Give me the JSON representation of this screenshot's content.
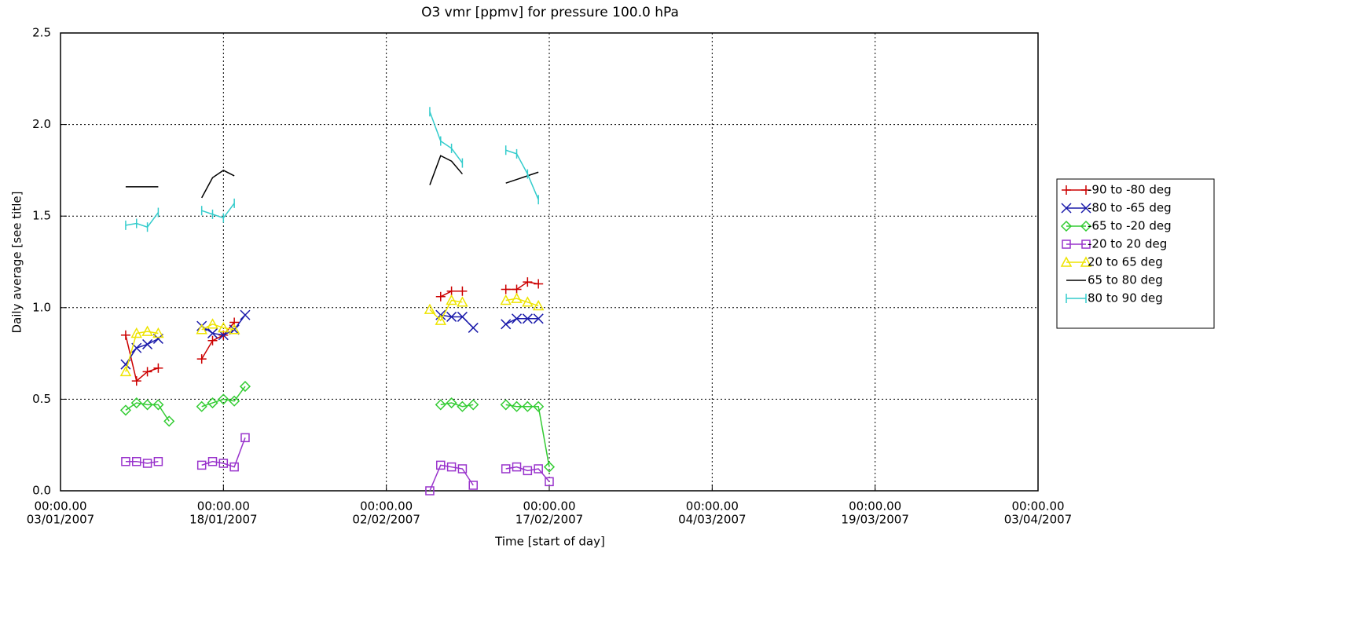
{
  "chart_data": {
    "type": "line",
    "title": "O3 vmr [ppmv] for pressure 100.0 hPa",
    "x_label": "Time [start of day]",
    "y_label": "Daily average [see title]",
    "x": [
      "2007-01-09",
      "2007-01-10",
      "2007-01-11",
      "2007-01-12",
      "2007-01-13",
      "2007-01-14",
      "2007-01-16",
      "2007-01-17",
      "2007-01-18",
      "2007-01-19",
      "2007-01-20",
      "2007-01-21",
      "2007-02-06",
      "2007-02-07",
      "2007-02-08",
      "2007-02-09",
      "2007-02-10",
      "2007-02-11",
      "2007-02-13",
      "2007-02-14",
      "2007-02-15",
      "2007-02-16",
      "2007-02-17"
    ],
    "series": [
      {
        "name": "-90 to -80 deg",
        "color": "#cc0000",
        "marker": "plus",
        "values": [
          0.85,
          0.6,
          0.65,
          0.67,
          null,
          null,
          0.72,
          0.82,
          0.85,
          0.92,
          null,
          null,
          null,
          1.06,
          1.09,
          1.09,
          null,
          null,
          1.1,
          1.1,
          1.14,
          1.13,
          null
        ]
      },
      {
        "name": "-80 to -65 deg",
        "color": "#1a1aaa",
        "marker": "cross",
        "values": [
          0.69,
          0.78,
          0.8,
          0.83,
          null,
          null,
          0.9,
          0.86,
          0.85,
          0.88,
          0.96,
          null,
          null,
          0.96,
          0.95,
          0.95,
          0.89,
          null,
          0.91,
          0.94,
          0.94,
          0.94,
          null
        ]
      },
      {
        "name": "-65 to -20 deg",
        "color": "#33cc33",
        "marker": "diamond",
        "values": [
          0.44,
          0.48,
          0.47,
          0.47,
          0.38,
          null,
          0.46,
          0.48,
          0.5,
          0.49,
          0.57,
          null,
          null,
          0.47,
          0.48,
          0.46,
          0.47,
          null,
          0.47,
          0.46,
          0.46,
          0.46,
          0.13
        ]
      },
      {
        "name": "-20 to 20 deg",
        "color": "#9933cc",
        "marker": "square",
        "values": [
          0.16,
          0.16,
          0.15,
          0.16,
          null,
          null,
          0.14,
          0.16,
          0.15,
          0.13,
          0.29,
          null,
          0.0,
          0.14,
          0.13,
          0.12,
          0.03,
          null,
          0.12,
          0.13,
          0.11,
          0.12,
          0.05
        ]
      },
      {
        "name": "20 to 65 deg",
        "color": "#eee400",
        "marker": "triangle",
        "values": [
          0.65,
          0.86,
          0.87,
          0.86,
          null,
          null,
          0.88,
          0.91,
          0.89,
          0.88,
          null,
          null,
          0.99,
          0.93,
          1.04,
          1.03,
          null,
          null,
          1.04,
          1.05,
          1.03,
          1.01,
          null
        ]
      },
      {
        "name": "65 to 80 deg",
        "color": "#000000",
        "marker": "none",
        "values": [
          1.66,
          1.66,
          1.66,
          1.66,
          null,
          null,
          1.6,
          1.71,
          1.75,
          1.72,
          null,
          null,
          1.67,
          1.83,
          1.8,
          1.73,
          null,
          null,
          1.68,
          1.7,
          1.72,
          1.74,
          null
        ]
      },
      {
        "name": "80 to 90 deg",
        "color": "#33cccc",
        "marker": "vbar",
        "values": [
          1.45,
          1.46,
          1.44,
          1.52,
          null,
          null,
          1.53,
          1.51,
          1.49,
          1.57,
          null,
          null,
          2.07,
          1.91,
          1.87,
          1.79,
          null,
          null,
          1.86,
          1.84,
          1.73,
          1.59,
          null
        ]
      }
    ],
    "xlim": [
      "2007-01-03",
      "2007-04-03"
    ],
    "xticks": [
      {
        "value": "2007-01-03",
        "label": [
          "00:00.00",
          "03/01/2007"
        ]
      },
      {
        "value": "2007-01-18",
        "label": [
          "00:00.00",
          "18/01/2007"
        ]
      },
      {
        "value": "2007-02-02",
        "label": [
          "00:00.00",
          "02/02/2007"
        ]
      },
      {
        "value": "2007-02-17",
        "label": [
          "00:00.00",
          "17/02/2007"
        ]
      },
      {
        "value": "2007-03-04",
        "label": [
          "00:00.00",
          "04/03/2007"
        ]
      },
      {
        "value": "2007-03-19",
        "label": [
          "00:00.00",
          "19/03/2007"
        ]
      },
      {
        "value": "2007-04-03",
        "label": [
          "00:00.00",
          "03/04/2007"
        ]
      }
    ],
    "ylim": [
      0,
      2.5
    ],
    "yticks": [
      {
        "value": 0,
        "label": "0.0"
      },
      0.5,
      {
        "value": 1,
        "label": "1.0"
      },
      1.5,
      {
        "value": 2,
        "label": "2.0"
      },
      2.5
    ],
    "grid": true,
    "legend": "outside right"
  }
}
